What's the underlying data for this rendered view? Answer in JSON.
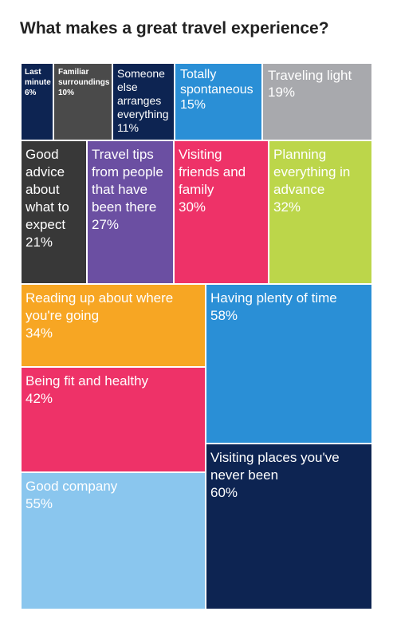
{
  "page": {
    "title": "What makes a great travel experience?"
  },
  "chart_data": {
    "type": "treemap",
    "title": "What makes a great travel experience?",
    "unit": "%",
    "items": [
      {
        "label": "Last minute",
        "value": 6,
        "color": "#0d2452"
      },
      {
        "label": "Familiar surroundings",
        "value": 10,
        "color": "#4a4a4a"
      },
      {
        "label": "Someone else arranges everything",
        "value": 11,
        "color": "#0d2452"
      },
      {
        "label": "Totally spontaneous",
        "value": 15,
        "color": "#2a8fd6"
      },
      {
        "label": "Traveling light",
        "value": 19,
        "color": "#a8a9ad"
      },
      {
        "label": "Good advice about what to expect",
        "value": 21,
        "color": "#383838"
      },
      {
        "label": "Travel tips from people that have been there",
        "value": 27,
        "color": "#6b4fa2"
      },
      {
        "label": "Visiting friends and family",
        "value": 30,
        "color": "#ee3268"
      },
      {
        "label": "Planning everything in advance",
        "value": 32,
        "color": "#bcd64a"
      },
      {
        "label": "Reading up about where you're going",
        "value": 34,
        "color": "#f7a623"
      },
      {
        "label": "Having plenty of time",
        "value": 58,
        "color": "#2a8fd6"
      },
      {
        "label": "Being fit and healthy",
        "value": 42,
        "color": "#ee3268"
      },
      {
        "label": "Visiting places you've never been",
        "value": 60,
        "color": "#0d2452"
      },
      {
        "label": "Good company",
        "value": 55,
        "color": "#8ac6ee"
      }
    ]
  }
}
